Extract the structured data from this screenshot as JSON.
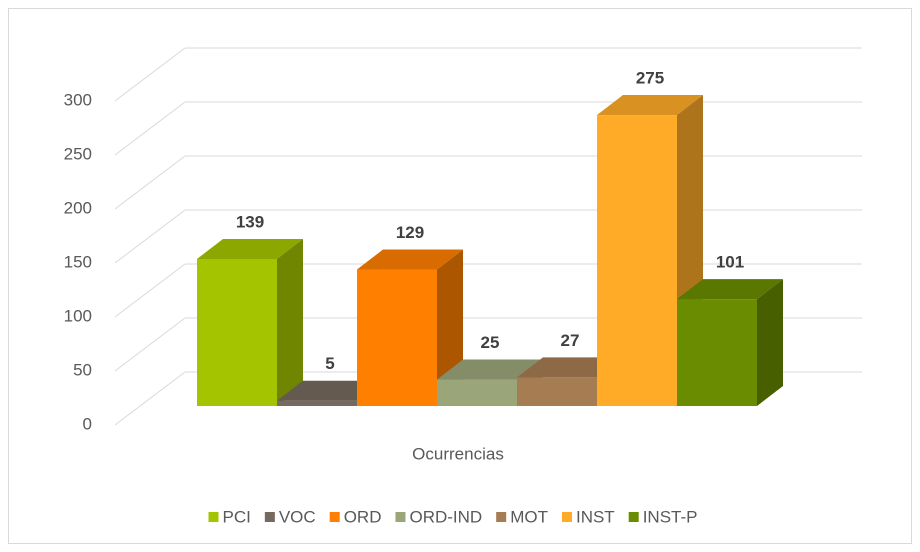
{
  "chart_data": {
    "type": "bar",
    "three_d": true,
    "categories": [
      "Ocurrencias"
    ],
    "series": [
      {
        "name": "PCI",
        "color": "#a5c400",
        "values": [
          139
        ]
      },
      {
        "name": "VOC",
        "color": "#766a5e",
        "values": [
          5
        ]
      },
      {
        "name": "ORD",
        "color": "#ff7f00",
        "values": [
          129
        ]
      },
      {
        "name": "ORD-IND",
        "color": "#9ba57a",
        "values": [
          25
        ]
      },
      {
        "name": "MOT",
        "color": "#a67c52",
        "values": [
          27
        ]
      },
      {
        "name": "INST",
        "color": "#ffab28",
        "values": [
          275
        ]
      },
      {
        "name": "INST-P",
        "color": "#6a8c00",
        "values": [
          101
        ]
      }
    ],
    "ylim": [
      0,
      300
    ],
    "yticks": [
      0,
      50,
      100,
      150,
      200,
      250,
      300
    ],
    "grid": true,
    "legend": "bottom"
  }
}
